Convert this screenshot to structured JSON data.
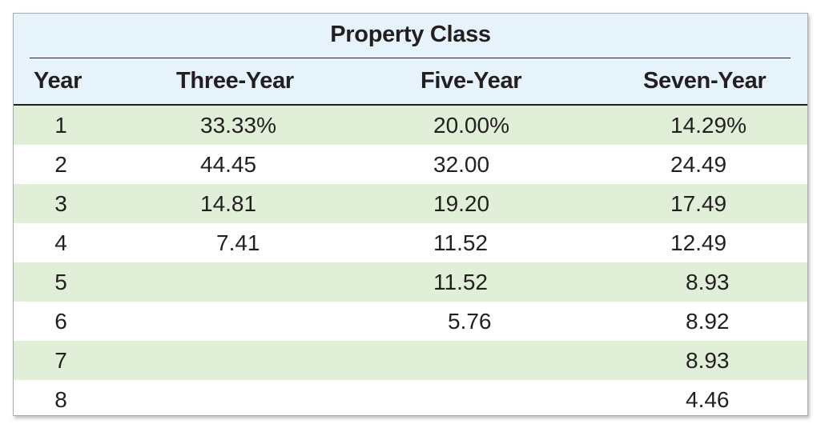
{
  "table": {
    "group_title": "Property Class",
    "headers": {
      "year": "Year",
      "three": "Three-Year",
      "five": "Five-Year",
      "seven": "Seven-Year"
    },
    "rows": [
      {
        "year": "1",
        "three": "33.33%",
        "five": "20.00%",
        "seven": "14.29%"
      },
      {
        "year": "2",
        "three": "44.45",
        "five": "32.00",
        "seven": "24.49"
      },
      {
        "year": "3",
        "three": "14.81",
        "five": "19.20",
        "seven": "17.49"
      },
      {
        "year": "4",
        "three": "7.41",
        "five": "11.52",
        "seven": "12.49"
      },
      {
        "year": "5",
        "three": "",
        "five": "11.52",
        "seven": "8.93"
      },
      {
        "year": "6",
        "three": "",
        "five": "5.76",
        "seven": "8.92"
      },
      {
        "year": "7",
        "three": "",
        "five": "",
        "seven": "8.93"
      },
      {
        "year": "8",
        "three": "",
        "five": "",
        "seven": "4.46"
      }
    ],
    "colors": {
      "header_band": "#e6f3fb",
      "shaded_row": "#e2efd8",
      "text": "#231f20"
    }
  }
}
